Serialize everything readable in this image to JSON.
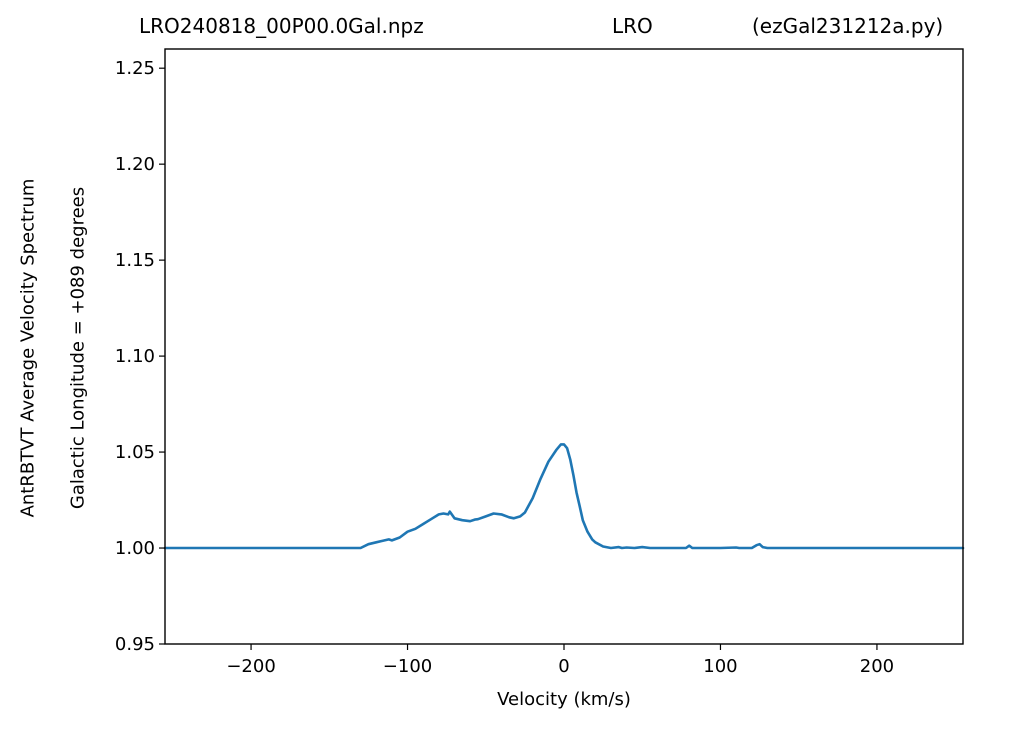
{
  "chart_data": {
    "type": "line",
    "title_parts": [
      "LRO240818_00P00.0Gal.npz",
      "LRO",
      "(ezGal231212a.py)"
    ],
    "xlabel": "Velocity (km/s)",
    "ylabel_lines": [
      "AntRBTVT Average Velocity Spectrum",
      "Galactic Longitude = +089 degrees"
    ],
    "xlim": [
      -255,
      255
    ],
    "ylim": [
      0.95,
      1.26
    ],
    "xticks": [
      -200,
      -100,
      0,
      100,
      200
    ],
    "xtick_labels": [
      "−200",
      "−100",
      "0",
      "100",
      "200"
    ],
    "yticks": [
      0.95,
      1.0,
      1.05,
      1.1,
      1.15,
      1.2,
      1.25
    ],
    "ytick_labels": [
      "0.95",
      "1.00",
      "1.05",
      "1.10",
      "1.15",
      "1.20",
      "1.25"
    ],
    "grid": false,
    "color": "#1f77b4",
    "series": [
      {
        "x": [
          -255,
          -130,
          -125,
          -120,
          -112,
          -110,
          -105,
          -100,
          -95,
          -90,
          -85,
          -80,
          -77,
          -74,
          -73,
          -70,
          -65,
          -60,
          -57,
          -55,
          -50,
          -45,
          -40,
          -35,
          -32,
          -28,
          -25,
          -20,
          -15,
          -10,
          -5,
          -2,
          0,
          2,
          4,
          6,
          8,
          10,
          12,
          15,
          18,
          20,
          25,
          30,
          35,
          37,
          40,
          45,
          50,
          55,
          60,
          70,
          78,
          80,
          82,
          85,
          90,
          100,
          110,
          112,
          115,
          120,
          123,
          125,
          127,
          130,
          135,
          150,
          200,
          255
        ],
        "y": [
          1.0,
          1.0,
          1.002,
          1.003,
          1.0045,
          1.004,
          1.0055,
          1.0085,
          1.01,
          1.0125,
          1.015,
          1.0175,
          1.018,
          1.0175,
          1.019,
          1.0155,
          1.0145,
          1.014,
          1.0148,
          1.015,
          1.0165,
          1.018,
          1.0175,
          1.016,
          1.0155,
          1.0165,
          1.0185,
          1.026,
          1.036,
          1.045,
          1.051,
          1.054,
          1.054,
          1.052,
          1.046,
          1.038,
          1.029,
          1.022,
          1.0145,
          1.0085,
          1.0045,
          1.003,
          1.0008,
          1.0,
          1.0005,
          1.0,
          1.0003,
          1.0,
          1.0005,
          1.0,
          1.0,
          1.0,
          1.0,
          1.0012,
          1.0,
          1.0,
          1.0,
          1.0,
          1.0003,
          1.0,
          1.0,
          1.0,
          1.0015,
          1.002,
          1.0005,
          1.0,
          1.0,
          1.0,
          1.0,
          1.0
        ]
      }
    ]
  }
}
